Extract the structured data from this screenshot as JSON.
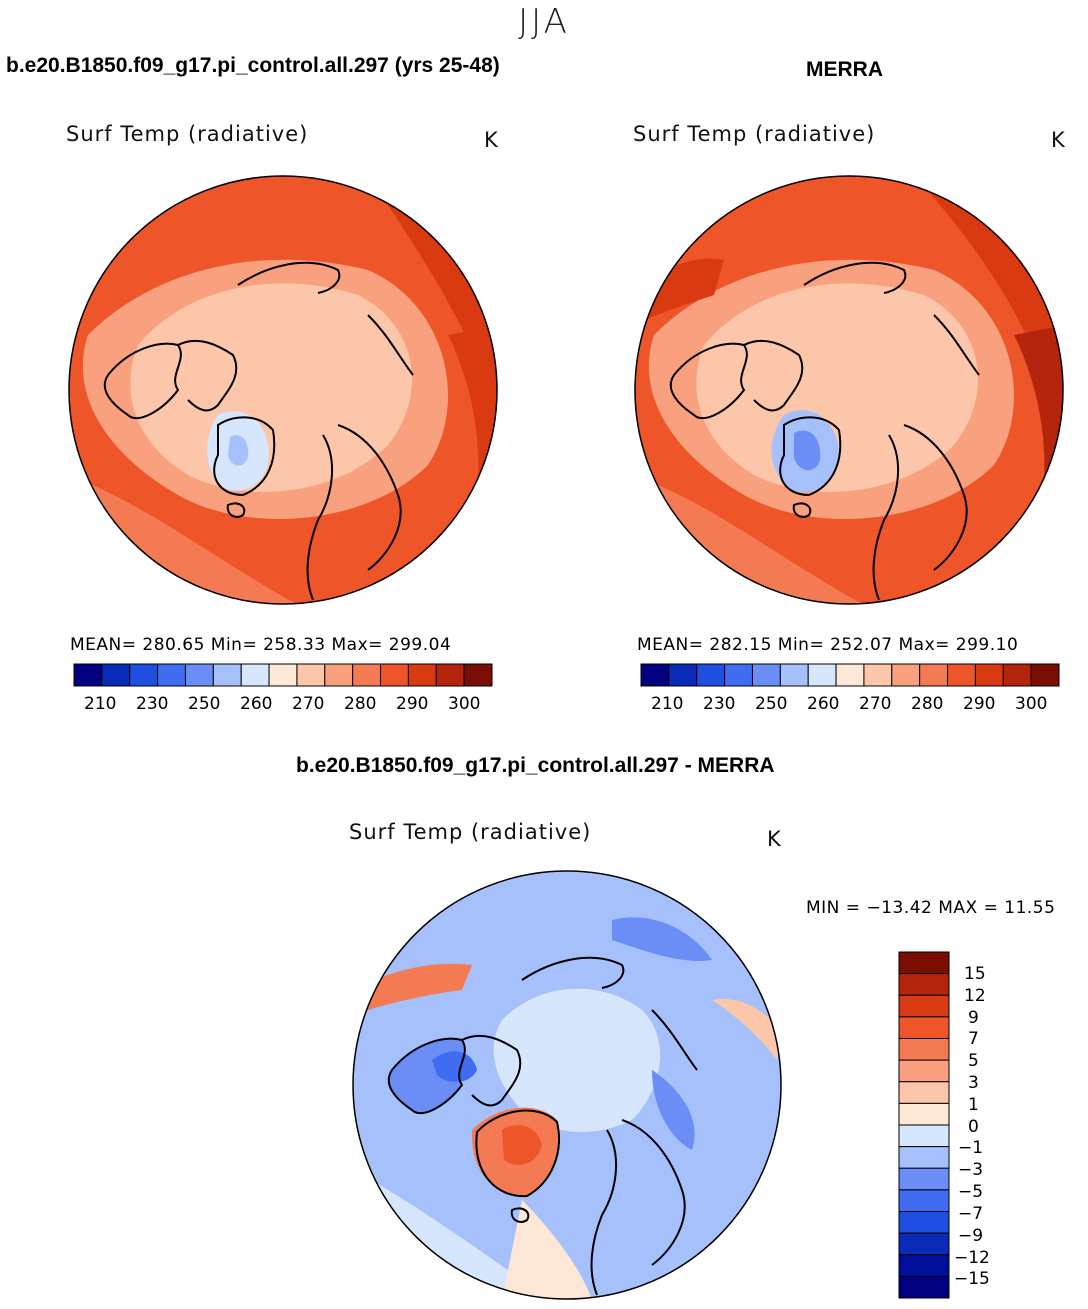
{
  "season": "JJA",
  "panels": [
    {
      "title": "b.e20.B1850.f09_g17.pi_control.all.297 (yrs 25-48)",
      "variable": "Surf Temp (radiative)",
      "units": "K",
      "stats": "MEAN= 280.65   Min= 258.33   Max= 299.04",
      "colorbar_ticks": [
        "210",
        "230",
        "250",
        "260",
        "270",
        "280",
        "290",
        "300"
      ]
    },
    {
      "title": "MERRA",
      "variable": "Surf Temp (radiative)",
      "units": "K",
      "stats": "MEAN= 282.15   Min= 252.07   Max= 299.10",
      "colorbar_ticks": [
        "210",
        "230",
        "250",
        "260",
        "270",
        "280",
        "290",
        "300"
      ]
    }
  ],
  "difference": {
    "title": "b.e20.B1850.f09_g17.pi_control.all.297 - MERRA",
    "variable": "Surf Temp (radiative)",
    "units": "K",
    "stats": "MIN = −13.42 MAX =   11.55",
    "colorbar_ticks": [
      "15",
      "12",
      "9",
      "7",
      "5",
      "3",
      "1",
      "0",
      "−1",
      "−3",
      "−5",
      "−7",
      "−9",
      "−12",
      "−15"
    ]
  },
  "colors": {
    "abs_scale": [
      "#000080",
      "#0a2bb8",
      "#1e4fe0",
      "#3f6cf0",
      "#6a8ef5",
      "#a6c0fb",
      "#d6e6fd",
      "#fde7d6",
      "#fcc6aa",
      "#f9a07e",
      "#f47a54",
      "#ee5528",
      "#d93a12",
      "#b5240c",
      "#7a0d04"
    ],
    "diff_scale": [
      "#7a0d04",
      "#b5240c",
      "#d93a12",
      "#ee5528",
      "#f47a54",
      "#f9a07e",
      "#fcc6aa",
      "#fde7d6",
      "#d6e6fd",
      "#a6c0fb",
      "#6a8ef5",
      "#3f6cf0",
      "#1e4fe0",
      "#0a2bb8",
      "#00109a",
      "#000080"
    ]
  }
}
